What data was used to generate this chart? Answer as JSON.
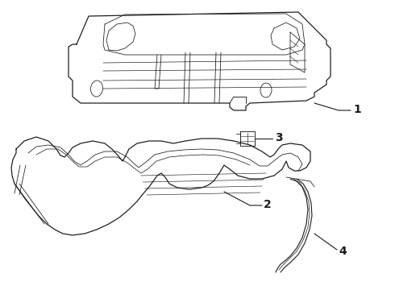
{
  "bg_color": "#ffffff",
  "line_color": "#1a1a1a",
  "lw": 0.8,
  "label_fontsize": 10
}
